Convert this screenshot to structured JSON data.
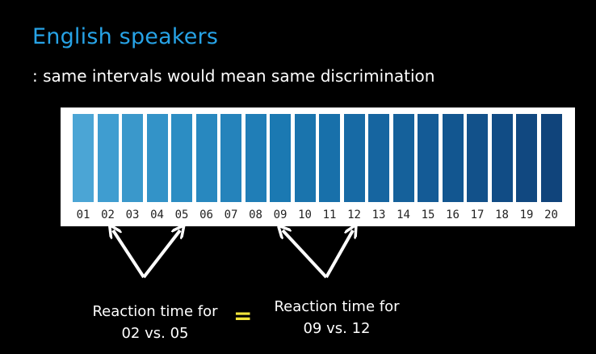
{
  "slide": {
    "title": "English speakers",
    "subtitle": ": same intervals would mean same discrimination"
  },
  "palette": {
    "labels": [
      "01",
      "02",
      "03",
      "04",
      "05",
      "06",
      "07",
      "08",
      "09",
      "10",
      "11",
      "12",
      "13",
      "14",
      "15",
      "16",
      "17",
      "18",
      "19",
      "20"
    ],
    "colors": [
      "#4ba5d5",
      "#3f9dd0",
      "#3a98cb",
      "#3393c8",
      "#2c8dc3",
      "#2888bf",
      "#2583bb",
      "#207eb7",
      "#1b79b2",
      "#1a74ad",
      "#1870aa",
      "#176aa5",
      "#1665a0",
      "#15619b",
      "#145b96",
      "#125690",
      "#12518a",
      "#114c85",
      "#114880",
      "#10447b"
    ]
  },
  "comparison": {
    "left_caption_line1": "Reaction time for",
    "left_caption_line2": "02 vs. 05",
    "equals": "=",
    "right_caption_line1": "Reaction time for",
    "right_caption_line2": "09 vs. 12"
  },
  "colors": {
    "background": "#000000",
    "title": "#27a3e6",
    "equals": "#f1e43a",
    "arrow": "#ffffff"
  }
}
